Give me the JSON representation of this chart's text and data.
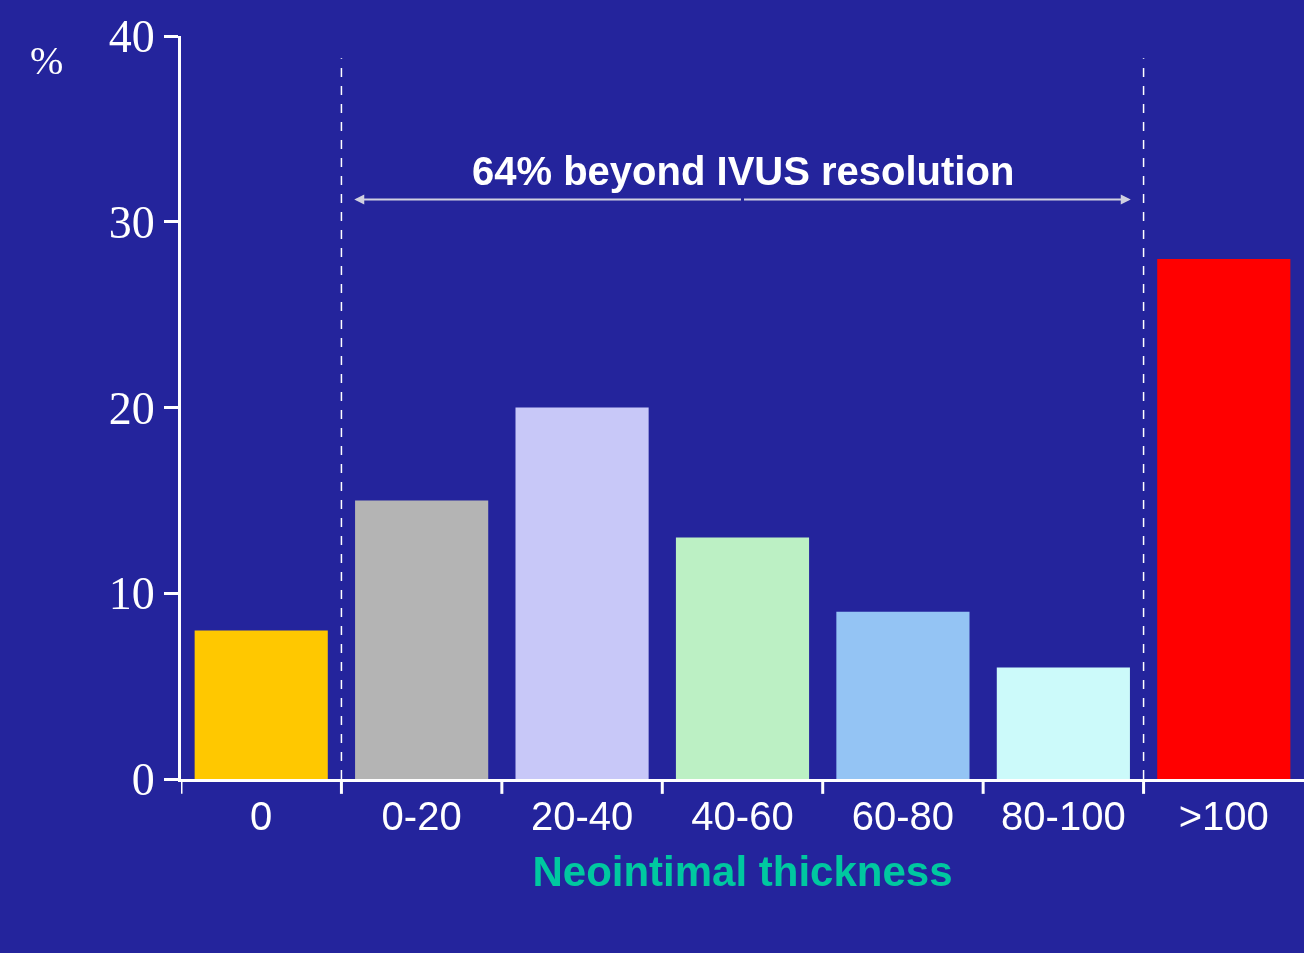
{
  "chart_data": {
    "type": "bar",
    "xlabel": "Neointimal thickness",
    "ylabel": "%",
    "categories": [
      "0",
      "0-20",
      "20-40",
      "40-60",
      "60-80",
      "80-100",
      ">100"
    ],
    "values": [
      8,
      15,
      20,
      13,
      9,
      6,
      28
    ],
    "colors": [
      "#ffc800",
      "#b4b4b4",
      "#c8c8f8",
      "#bcf0c4",
      "#94c4f4",
      "#ccfafa",
      "#ff0000"
    ],
    "ylim": [
      0,
      40
    ],
    "yticks": [
      0,
      10,
      20,
      30,
      40
    ],
    "grid": false,
    "annotations": [
      "64% beyond IVUS resolution"
    ]
  }
}
